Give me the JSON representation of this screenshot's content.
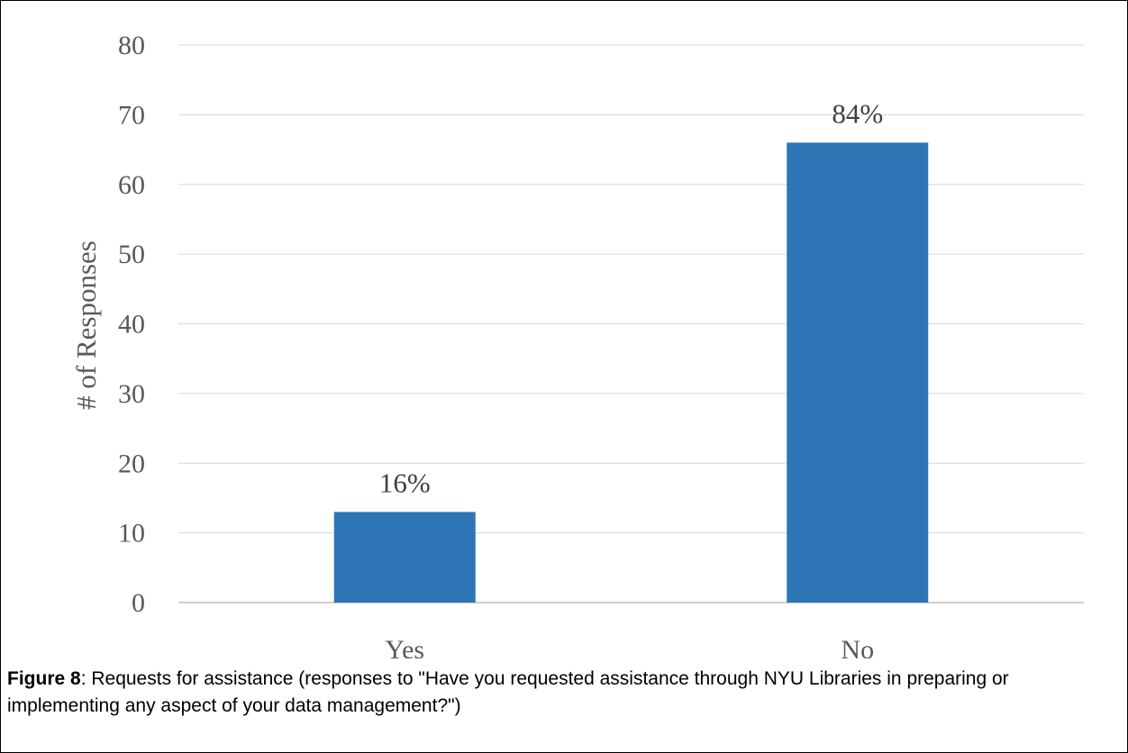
{
  "chart_data": {
    "type": "bar",
    "categories": [
      "Yes",
      "No"
    ],
    "values": [
      13,
      66
    ],
    "data_labels": [
      "16%",
      "84%"
    ],
    "ylabel": "# of Responses",
    "xlabel": "",
    "ylim": [
      0,
      80
    ],
    "yticks": [
      0,
      10,
      20,
      30,
      40,
      50,
      60,
      70,
      80
    ],
    "grid": true,
    "legend": "none",
    "bar_color": "#2E75B6",
    "grid_color": "#D9D9D9"
  },
  "caption": {
    "label": "Figure 8",
    "text": ": Requests for assistance (responses to \"Have you requested assistance through NYU Libraries in preparing or implementing any aspect of your data management?\")"
  }
}
